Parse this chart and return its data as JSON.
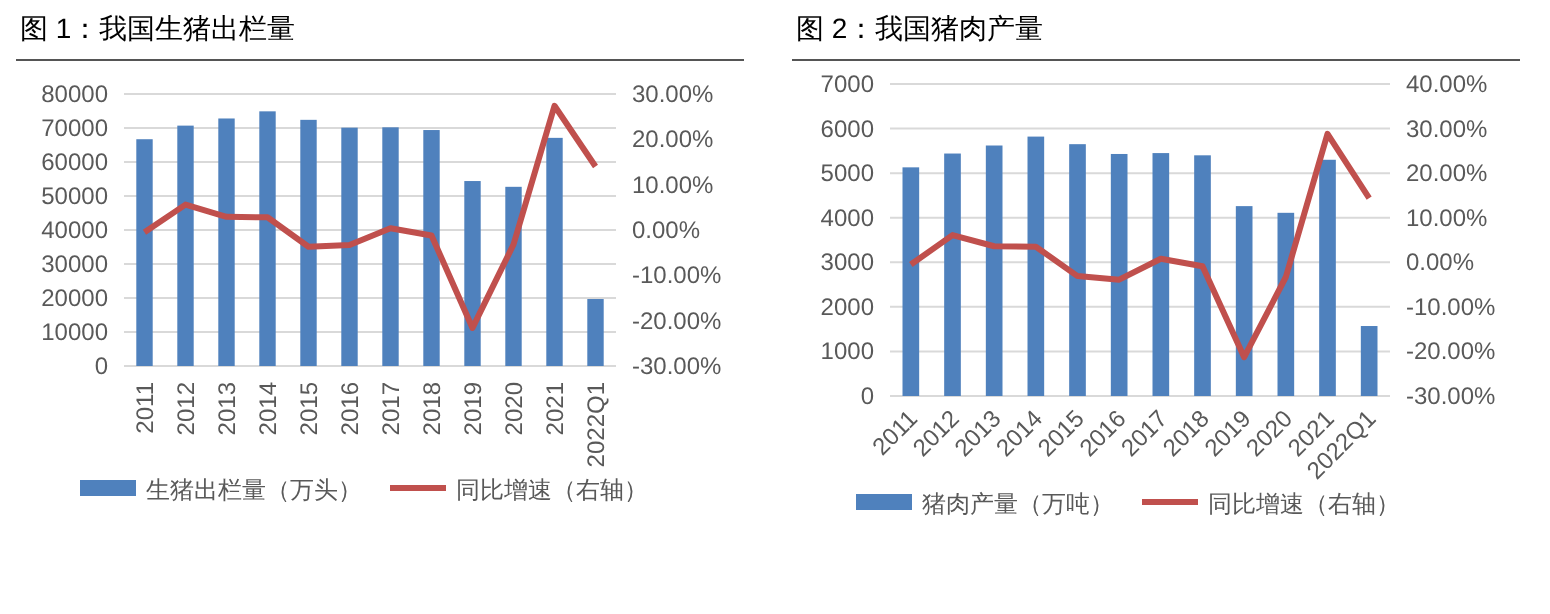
{
  "chart_data": [
    {
      "type": "bar",
      "title": "图 1：我国生猪出栏量",
      "categories": [
        "2011",
        "2012",
        "2013",
        "2014",
        "2015",
        "2016",
        "2017",
        "2018",
        "2019",
        "2020",
        "2021",
        "2022Q1"
      ],
      "series": [
        {
          "name": "生猪出栏量（万头）",
          "color": "#4f81bd",
          "values": [
            66700,
            70700,
            72800,
            74900,
            72400,
            70100,
            70200,
            69400,
            54400,
            52700,
            67100,
            19700
          ]
        },
        {
          "name": "同比增速（右轴）",
          "type": "line",
          "axis": "y2",
          "color": "#c0504d",
          "values": [
            -0.5,
            5.6,
            2.9,
            2.8,
            -3.7,
            -3.3,
            0.4,
            -1.2,
            -21.6,
            -3.2,
            27.4,
            14.0
          ]
        }
      ],
      "ylim": [
        0,
        80000
      ],
      "yticks": [
        0,
        10000,
        20000,
        30000,
        40000,
        50000,
        60000,
        70000,
        80000
      ],
      "y2lim": [
        -30,
        30
      ],
      "y2ticks": [
        {
          "value": -30,
          "label": "-30.00%"
        },
        {
          "value": -20,
          "label": "-20.00%"
        },
        {
          "value": -10,
          "label": "-10.00%"
        },
        {
          "value": 0,
          "label": "0.00%"
        },
        {
          "value": 10,
          "label": "10.00%"
        },
        {
          "value": 20,
          "label": "20.00%"
        },
        {
          "value": 30,
          "label": "30.00%"
        }
      ],
      "grid": "y",
      "legend": "bottom",
      "marker": "none",
      "line_style": "solid"
    },
    {
      "type": "bar",
      "title": "图 2：我国猪肉产量",
      "categories": [
        "2011",
        "2012",
        "2013",
        "2014",
        "2015",
        "2016",
        "2017",
        "2018",
        "2019",
        "2020",
        "2021",
        "2022Q1"
      ],
      "series": [
        {
          "name": "猪肉产量（万吨）",
          "color": "#4f81bd",
          "values": [
            5130,
            5440,
            5620,
            5820,
            5650,
            5430,
            5450,
            5400,
            4260,
            4110,
            5300,
            1570
          ]
        },
        {
          "name": "同比增速（右轴）",
          "type": "line",
          "axis": "y2",
          "color": "#c0504d",
          "values": [
            -0.5,
            6.1,
            3.6,
            3.5,
            -3.1,
            -3.9,
            0.8,
            -0.9,
            -21.3,
            -3.3,
            28.8,
            14.4
          ]
        }
      ],
      "ylim": [
        0,
        7000
      ],
      "yticks": [
        0,
        1000,
        2000,
        3000,
        4000,
        5000,
        6000,
        7000
      ],
      "y2lim": [
        -30,
        40
      ],
      "y2ticks": [
        {
          "value": -30,
          "label": "-30.00%"
        },
        {
          "value": -20,
          "label": "-20.00%"
        },
        {
          "value": -10,
          "label": "-10.00%"
        },
        {
          "value": 0,
          "label": "0.00%"
        },
        {
          "value": 10,
          "label": "10.00%"
        },
        {
          "value": 20,
          "label": "20.00%"
        },
        {
          "value": 30,
          "label": "30.00%"
        },
        {
          "value": 40,
          "label": "40.00%"
        }
      ],
      "grid": "y",
      "legend": "bottom",
      "marker": "none",
      "line_style": "solid"
    }
  ]
}
